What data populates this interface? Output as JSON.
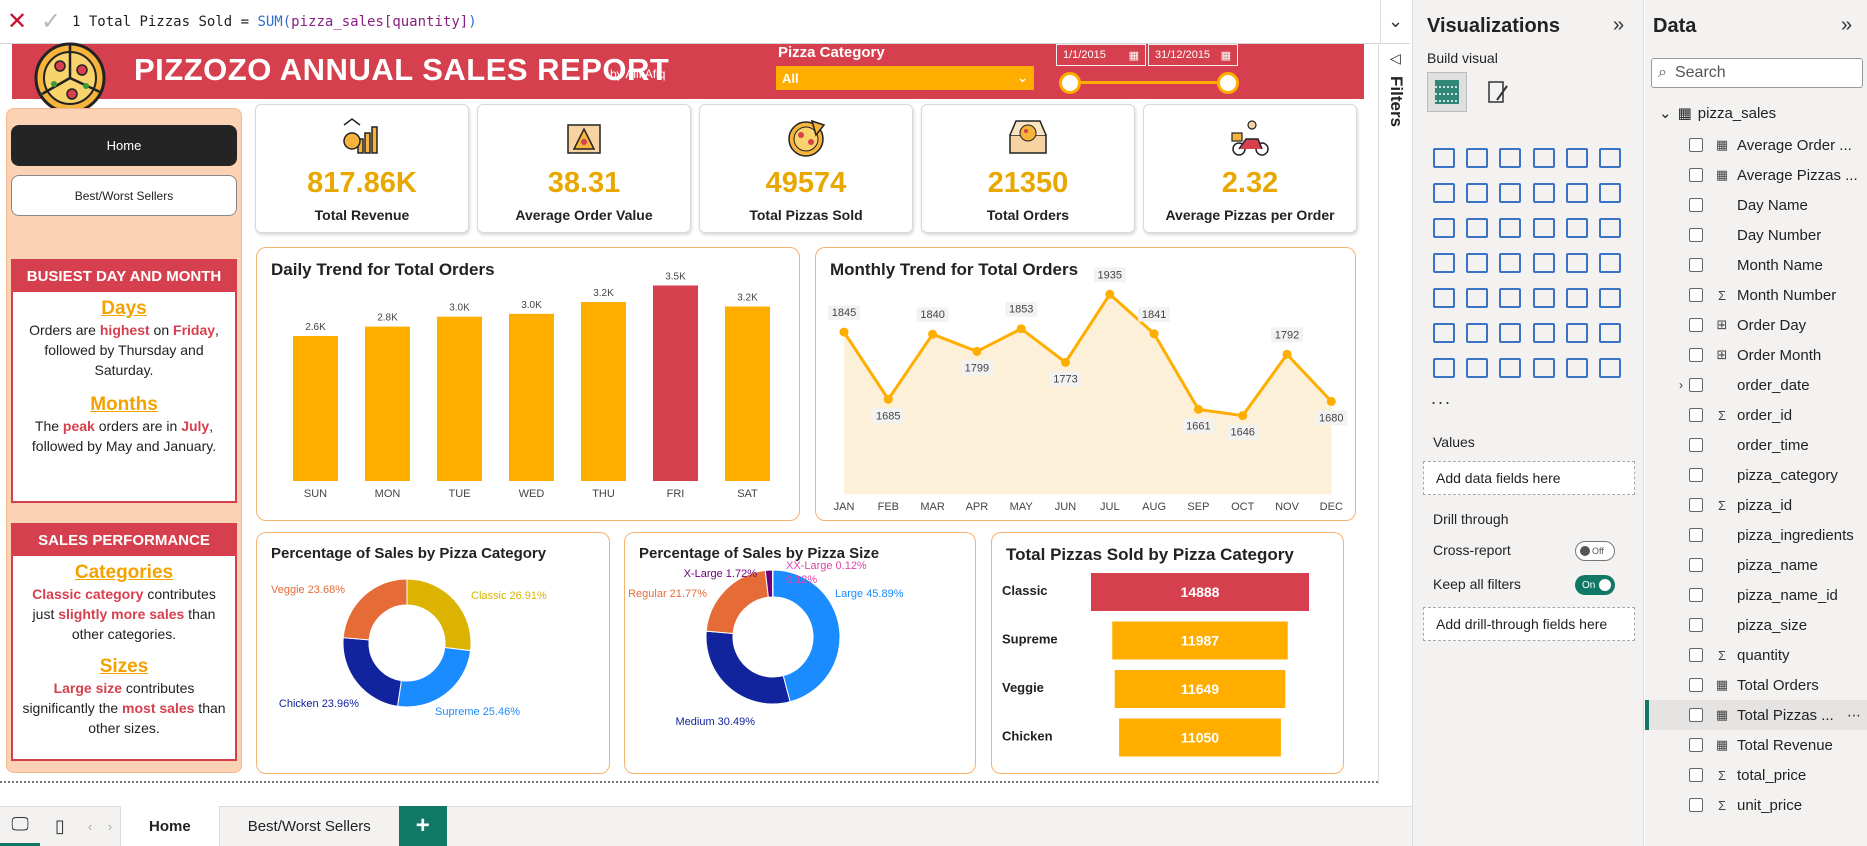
{
  "formula_bar": {
    "line_number": "1",
    "measure_name": "Total Pizzas Sold = ",
    "function": "SUM(",
    "reference": "pizza_sales[quantity]",
    "closing": ")"
  },
  "banner": {
    "title": "PIZZOZO ANNUAL SALES REPORT",
    "author": "by Alif Afiq",
    "category_filter_label": "Pizza Category",
    "category_filter_value": "All",
    "date_start": "1/1/2015",
    "date_end": "31/12/2015"
  },
  "nav": {
    "home": "Home",
    "best_worst": "Best/Worst Sellers"
  },
  "busiest": {
    "header": "BUSIEST DAY AND MONTH",
    "days_title": "Days",
    "days_t1": "Orders are ",
    "days_b1": "highest",
    "days_t2": " on ",
    "days_b2": "Friday",
    "days_t3": ", followed by Thursday and Saturday.",
    "months_title": "Months",
    "months_t1": "The ",
    "months_b1": "peak",
    "months_t2": " orders are in ",
    "months_b2": "July",
    "months_t3": ", followed by May and January."
  },
  "performance": {
    "header": "SALES PERFORMANCE",
    "cat_title": "Categories",
    "cat_b1": "Classic category",
    "cat_t1": " contributes just ",
    "cat_b2": "slightly more sales",
    "cat_t2": " than other categories.",
    "size_title": "Sizes",
    "size_b1": "Large size",
    "size_t1": " contributes significantly the ",
    "size_b2": "most sales",
    "size_t2": " than other sizes."
  },
  "kpis": [
    {
      "value": "817.86K",
      "label": "Total Revenue",
      "icon": "revenue-icon"
    },
    {
      "value": "38.31",
      "label": "Average Order Value",
      "icon": "pizza-box-icon"
    },
    {
      "value": "49574",
      "label": "Total Pizzas Sold",
      "icon": "pizza-icon"
    },
    {
      "value": "21350",
      "label": "Total Orders",
      "icon": "open-box-icon"
    },
    {
      "value": "2.32",
      "label": "Average Pizzas per Order",
      "icon": "delivery-scooter-icon"
    }
  ],
  "chart_data": [
    {
      "type": "bar",
      "title": "Daily Trend for Total Orders",
      "categories": [
        "SUN",
        "MON",
        "TUE",
        "WED",
        "THU",
        "FRI",
        "SAT"
      ],
      "values": [
        2624,
        2794,
        2973,
        3024,
        3239,
        3538,
        3158
      ],
      "data_labels": [
        "2.6K",
        "2.8K",
        "3.0K",
        "3.0K",
        "3.2K",
        "3.5K",
        "3.2K"
      ],
      "highlight": "FRI",
      "colors": {
        "bar": "#ffae00",
        "highlight": "#d6404e"
      }
    },
    {
      "type": "line",
      "title": "Monthly Trend for Total Orders",
      "categories": [
        "JAN",
        "FEB",
        "MAR",
        "APR",
        "MAY",
        "JUN",
        "JUL",
        "AUG",
        "SEP",
        "OCT",
        "NOV",
        "DEC"
      ],
      "values": [
        1845,
        1685,
        1840,
        1799,
        1853,
        1773,
        1935,
        1841,
        1661,
        1646,
        1792,
        1680
      ],
      "colors": {
        "line": "#ffae00",
        "area": "#fdf0d8"
      }
    },
    {
      "type": "pie",
      "title": "Percentage of Sales by Pizza Category",
      "labels": [
        "Classic",
        "Supreme",
        "Chicken",
        "Veggie"
      ],
      "values": [
        26.91,
        25.46,
        23.96,
        23.68
      ],
      "display_labels": [
        "Classic 26.91%",
        "Supreme 25.46%",
        "Chicken 23.96%",
        "Veggie 23.68%"
      ],
      "colors": [
        "#dbb300",
        "#1a8cff",
        "#12239e",
        "#e66c37"
      ]
    },
    {
      "type": "pie",
      "title": "Percentage of Sales by Pizza Size",
      "labels": [
        "Large",
        "Medium",
        "Regular",
        "X-Large",
        "XX-Large"
      ],
      "values": [
        45.89,
        30.49,
        21.77,
        1.72,
        0.12
      ],
      "display_labels": [
        "Large 45.89%",
        "Medium 30.49%",
        "Regular 21.77%",
        "X-Large 1.72%",
        "XX-Large 0.12%"
      ],
      "colors": [
        "#1a8cff",
        "#12239e",
        "#e66c37",
        "#6b007b",
        "#e044a7"
      ]
    },
    {
      "type": "bar",
      "title": "Total Pizzas Sold by Pizza Category",
      "categories": [
        "Classic",
        "Supreme",
        "Veggie",
        "Chicken"
      ],
      "values": [
        14888,
        11987,
        11649,
        11050
      ],
      "colors": {
        "first": "#d6404e",
        "rest": "#ffae00"
      }
    }
  ],
  "filters_pane": {
    "label": "Filters"
  },
  "viz_pane": {
    "title": "Visualizations",
    "build_label": "Build visual",
    "values_label": "Values",
    "values_placeholder": "Add data fields here",
    "drill_label": "Drill through",
    "cross_report": "Cross-report",
    "cross_toggle": "Off",
    "keep_filters": "Keep all filters",
    "keep_toggle": "On",
    "drill_placeholder": "Add drill-through fields here",
    "more": "..."
  },
  "data_pane": {
    "title": "Data",
    "search_placeholder": "Search",
    "table": "pizza_sales",
    "fields": [
      {
        "name": "Average Order ...",
        "type": "calc"
      },
      {
        "name": "Average Pizzas ...",
        "type": "calc"
      },
      {
        "name": "Day Name",
        "type": ""
      },
      {
        "name": "Day Number",
        "type": ""
      },
      {
        "name": "Month Name",
        "type": ""
      },
      {
        "name": "Month Number",
        "type": "sum"
      },
      {
        "name": "Order Day",
        "type": "calc-col"
      },
      {
        "name": "Order Month",
        "type": "calc-col"
      },
      {
        "name": "order_date",
        "type": "",
        "expandable": true
      },
      {
        "name": "order_id",
        "type": "sum"
      },
      {
        "name": "order_time",
        "type": ""
      },
      {
        "name": "pizza_category",
        "type": ""
      },
      {
        "name": "pizza_id",
        "type": "sum"
      },
      {
        "name": "pizza_ingredients",
        "type": ""
      },
      {
        "name": "pizza_name",
        "type": ""
      },
      {
        "name": "pizza_name_id",
        "type": ""
      },
      {
        "name": "pizza_size",
        "type": ""
      },
      {
        "name": "quantity",
        "type": "sum"
      },
      {
        "name": "Total Orders",
        "type": "calc"
      },
      {
        "name": "Total Pizzas ...",
        "type": "calc",
        "selected": true
      },
      {
        "name": "Total Revenue",
        "type": "calc"
      },
      {
        "name": "total_price",
        "type": "sum"
      },
      {
        "name": "unit_price",
        "type": "sum"
      }
    ]
  },
  "tabs": {
    "pages": [
      "Home",
      "Best/Worst Sellers"
    ],
    "active": "Home",
    "add": "+"
  }
}
